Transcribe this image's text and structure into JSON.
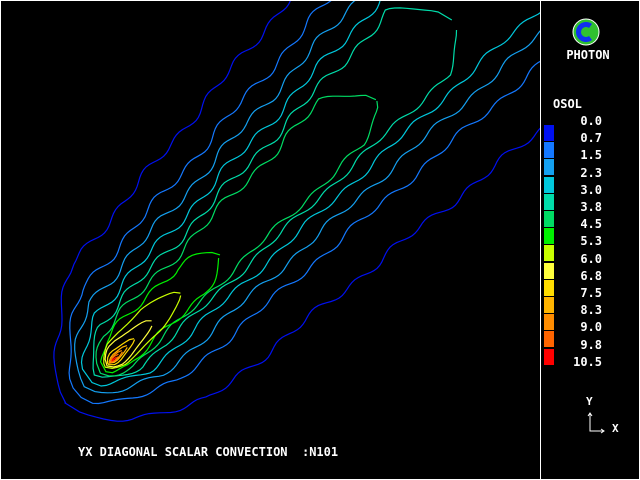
{
  "app": {
    "brand": "PHOTON"
  },
  "title": "YX DIAGONAL SCALAR CONVECTION  :N101",
  "axes_indicator": {
    "y": "Y",
    "x": "X"
  },
  "chart_data": {
    "type": "contour",
    "title": "YX DIAGONAL SCALAR CONVECTION  :N101",
    "variable": "OSOL",
    "legend_placement": "right",
    "levels": [
      "0.0",
      "0.7",
      "1.5",
      "2.3",
      "3.0",
      "3.8",
      "4.5",
      "5.3",
      "6.0",
      "6.8",
      "7.5",
      "8.3",
      "9.0",
      "9.8",
      "10.5"
    ],
    "colors": [
      "#0010f0",
      "#1478ff",
      "#14a0f0",
      "#00c8dc",
      "#00dcaa",
      "#00dc64",
      "#00f000",
      "#c8ff00",
      "#ffff3c",
      "#ffdc00",
      "#ffb400",
      "#ff8c00",
      "#ff6400",
      "#ff0000"
    ],
    "direction": "diagonal, from lower-left source toward upper-right"
  }
}
